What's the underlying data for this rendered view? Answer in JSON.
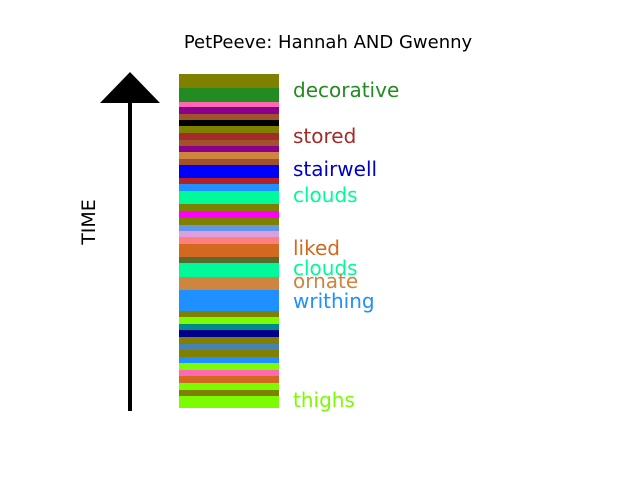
{
  "title": "PetPeeve: Hannah AND Gwenny",
  "axis_label": "TIME",
  "stripes": [
    {
      "color": "#808000",
      "h": 14
    },
    {
      "color": "#228B22",
      "h": 14
    },
    {
      "color": "#FF69B4",
      "h": 5
    },
    {
      "color": "#8B008B",
      "h": 7
    },
    {
      "color": "#A0522D",
      "h": 6
    },
    {
      "color": "#000000",
      "h": 6
    },
    {
      "color": "#808000",
      "h": 7
    },
    {
      "color": "#A52A2A",
      "h": 7
    },
    {
      "color": "#A0522D",
      "h": 6
    },
    {
      "color": "#8B008B",
      "h": 6
    },
    {
      "color": "#CD853F",
      "h": 7
    },
    {
      "color": "#A0522D",
      "h": 6
    },
    {
      "color": "#0000FF",
      "h": 13
    },
    {
      "color": "#B22222",
      "h": 6
    },
    {
      "color": "#1E90FF",
      "h": 7
    },
    {
      "color": "#00FA9A",
      "h": 13
    },
    {
      "color": "#808000",
      "h": 7
    },
    {
      "color": "#FF00FF",
      "h": 7
    },
    {
      "color": "#808000",
      "h": 7
    },
    {
      "color": "#6495ED",
      "h": 6
    },
    {
      "color": "#DDA0DD",
      "h": 6
    },
    {
      "color": "#FF7F7F",
      "h": 7
    },
    {
      "color": "#D2691E",
      "h": 13
    },
    {
      "color": "#556B2F",
      "h": 6
    },
    {
      "color": "#00FA9A",
      "h": 14
    },
    {
      "color": "#CD853F",
      "h": 13
    },
    {
      "color": "#1E90FF",
      "h": 21
    },
    {
      "color": "#808000",
      "h": 6
    },
    {
      "color": "#7CFC00",
      "h": 7
    },
    {
      "color": "#008B8B",
      "h": 6
    },
    {
      "color": "#00008B",
      "h": 7
    },
    {
      "color": "#808000",
      "h": 7
    },
    {
      "color": "#4682B4",
      "h": 6
    },
    {
      "color": "#808000",
      "h": 7
    },
    {
      "color": "#1E90FF",
      "h": 6
    },
    {
      "color": "#7CFC00",
      "h": 7
    },
    {
      "color": "#FF69B4",
      "h": 6
    },
    {
      "color": "#D2691E",
      "h": 7
    },
    {
      "color": "#7CFC00",
      "h": 7
    },
    {
      "color": "#808000",
      "h": 6
    },
    {
      "color": "#7CFC00",
      "h": 12
    }
  ],
  "words": [
    {
      "text": "decorative",
      "color": "#228B22",
      "center": 90
    },
    {
      "text": "stored",
      "color": "#A52A2A",
      "center": 136
    },
    {
      "text": "stairwell",
      "color": "#0000CD",
      "center": 169
    },
    {
      "text": "clouds",
      "color": "#00FA9A",
      "center": 195
    },
    {
      "text": "liked",
      "color": "#D2691E",
      "center": 248
    },
    {
      "text": "clouds",
      "color": "#00FA9A",
      "center": 268
    },
    {
      "text": "ornate",
      "color": "#CD853F",
      "center": 281
    },
    {
      "text": "writhing",
      "color": "#1E90FF",
      "center": 301
    },
    {
      "text": "thighs",
      "color": "#7CFC00",
      "center": 400
    }
  ]
}
